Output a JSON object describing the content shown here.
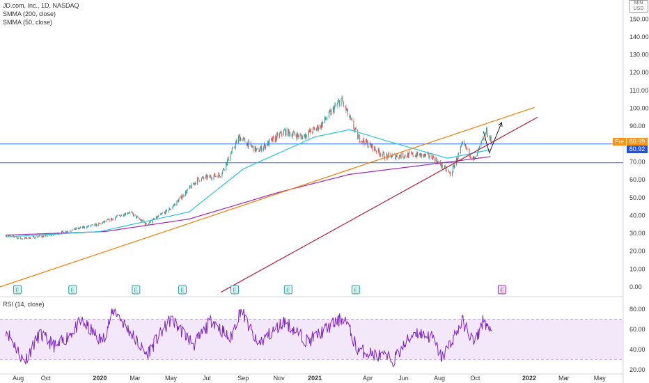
{
  "legend": {
    "title": "JD.com, Inc., 1D, NASDAQ",
    "line1": "SMMA (200, close)",
    "line2": "SMMA (50, close)"
  },
  "rsi_legend": "RSI (14, close)",
  "currency": {
    "line1": "MIN",
    "line2": "USD"
  },
  "pre_label": "Pre",
  "tags": {
    "pre_price": "80.99",
    "last_price": "80.92"
  },
  "earnings_marker": "E",
  "colors": {
    "up": "#26a69a",
    "down": "#ef5350",
    "smma200": "#9c27b0",
    "smma50": "#26c6da",
    "trend_orange": "#f57c00",
    "trend_red": "#b71c3c",
    "hline": "#2962ff",
    "rsi": "#7e22ce",
    "rsi_band": "#e9d8f7",
    "pre": "#f7931a",
    "last": "#1e53e5"
  },
  "chart_data": [
    {
      "type": "candlestick",
      "title": "JD.com, Inc., 1D, NASDAQ",
      "y_axis": {
        "ticks": [
          0,
          10,
          20,
          30,
          40,
          50,
          60,
          70,
          80,
          90,
          100,
          110,
          120,
          130,
          140,
          150
        ],
        "tick_labels": [
          "0.00",
          "10.00",
          "20.00",
          "30.00",
          "40.00",
          "50.00",
          "60.00",
          "70.00",
          "80.00",
          "90.00",
          "100.00",
          "110.00",
          "120.00",
          "130.00",
          "140.00",
          "150.00"
        ]
      },
      "x_axis": {
        "tick_labels": [
          "Aug",
          "Oct",
          "2020",
          "Mar",
          "May",
          "Jul",
          "Sep",
          "Nov",
          "2021",
          "Apr",
          "Jun",
          "Aug",
          "Oct",
          "2022",
          "Mar",
          "May"
        ]
      },
      "series_close_keypoints": [
        {
          "date": "2019-07-25",
          "value": 29
        },
        {
          "date": "2019-08-20",
          "value": 27
        },
        {
          "date": "2019-10-10",
          "value": 29
        },
        {
          "date": "2019-11-15",
          "value": 32
        },
        {
          "date": "2019-12-30",
          "value": 35
        },
        {
          "date": "2020-02-20",
          "value": 42
        },
        {
          "date": "2020-03-20",
          "value": 35
        },
        {
          "date": "2020-05-01",
          "value": 44
        },
        {
          "date": "2020-06-15",
          "value": 60
        },
        {
          "date": "2020-07-25",
          "value": 63
        },
        {
          "date": "2020-08-25",
          "value": 84
        },
        {
          "date": "2020-09-25",
          "value": 76
        },
        {
          "date": "2020-11-10",
          "value": 87
        },
        {
          "date": "2020-12-10",
          "value": 84
        },
        {
          "date": "2021-01-10",
          "value": 90
        },
        {
          "date": "2021-02-15",
          "value": 105
        },
        {
          "date": "2021-03-15",
          "value": 84
        },
        {
          "date": "2021-05-01",
          "value": 73
        },
        {
          "date": "2021-06-20",
          "value": 74
        },
        {
          "date": "2021-07-20",
          "value": 73
        },
        {
          "date": "2021-08-20",
          "value": 63
        },
        {
          "date": "2021-09-10",
          "value": 80
        },
        {
          "date": "2021-09-30",
          "value": 71
        },
        {
          "date": "2021-10-20",
          "value": 87
        },
        {
          "date": "2021-10-29",
          "value": 80.92
        }
      ],
      "smma200_keypoints": [
        {
          "date": "2019-07-25",
          "value": 29
        },
        {
          "date": "2020-01-10",
          "value": 31
        },
        {
          "date": "2020-06-01",
          "value": 38
        },
        {
          "date": "2020-11-01",
          "value": 53
        },
        {
          "date": "2021-03-01",
          "value": 63
        },
        {
          "date": "2021-07-01",
          "value": 68
        },
        {
          "date": "2021-10-29",
          "value": 73
        }
      ],
      "smma50_keypoints": [
        {
          "date": "2019-07-25",
          "value": 28
        },
        {
          "date": "2020-01-01",
          "value": 31
        },
        {
          "date": "2020-06-01",
          "value": 42
        },
        {
          "date": "2020-09-01",
          "value": 66
        },
        {
          "date": "2021-01-01",
          "value": 84
        },
        {
          "date": "2021-03-01",
          "value": 88
        },
        {
          "date": "2021-05-01",
          "value": 82
        },
        {
          "date": "2021-08-15",
          "value": 72
        },
        {
          "date": "2021-10-29",
          "value": 77
        }
      ],
      "horizontal_lines": [
        80,
        69.5
      ],
      "trendlines": [
        {
          "name": "upper",
          "from": {
            "date": "2019-07-15",
            "value": 0
          },
          "to": {
            "date": "2022-01-10",
            "value": 100.5
          }
        },
        {
          "name": "lower",
          "from": {
            "date": "2020-07-25",
            "value": -3
          },
          "to": {
            "date": "2022-01-15",
            "value": 95
          }
        }
      ],
      "projection_arrow": [
        {
          "date": "2021-10-15",
          "value": 87
        },
        {
          "date": "2021-10-25",
          "value": 75
        },
        {
          "date": "2021-11-15",
          "value": 92
        }
      ],
      "earnings_dates": [
        "2019-08-13",
        "2019-11-15",
        "2020-03-02",
        "2020-05-20",
        "2020-08-17",
        "2020-11-16",
        "2021-03-11"
      ],
      "earnings_upcoming": "2021-11-15",
      "pre_value": 80.99,
      "last_value": 80.92
    },
    {
      "type": "line",
      "title": "RSI (14, close)",
      "y_axis": {
        "ticks": [
          20,
          40,
          60,
          80
        ],
        "tick_labels": [
          "20.00",
          "40.00",
          "60.00",
          "80.00"
        ]
      },
      "bands": [
        30,
        70
      ],
      "rsi_keypoints": [
        {
          "date": "2019-07-25",
          "value": 60
        },
        {
          "date": "2019-08-25",
          "value": 28
        },
        {
          "date": "2019-09-20",
          "value": 55
        },
        {
          "date": "2019-10-20",
          "value": 42
        },
        {
          "date": "2019-12-01",
          "value": 68
        },
        {
          "date": "2020-01-05",
          "value": 48
        },
        {
          "date": "2020-01-25",
          "value": 80
        },
        {
          "date": "2020-03-20",
          "value": 35
        },
        {
          "date": "2020-05-01",
          "value": 70
        },
        {
          "date": "2020-06-10",
          "value": 45
        },
        {
          "date": "2020-07-10",
          "value": 70
        },
        {
          "date": "2020-08-10",
          "value": 50
        },
        {
          "date": "2020-08-28",
          "value": 80
        },
        {
          "date": "2020-09-25",
          "value": 45
        },
        {
          "date": "2020-11-10",
          "value": 68
        },
        {
          "date": "2020-12-20",
          "value": 48
        },
        {
          "date": "2021-02-01",
          "value": 65
        },
        {
          "date": "2021-02-20",
          "value": 72
        },
        {
          "date": "2021-03-15",
          "value": 40
        },
        {
          "date": "2021-05-15",
          "value": 30
        },
        {
          "date": "2021-06-20",
          "value": 58
        },
        {
          "date": "2021-07-20",
          "value": 52
        },
        {
          "date": "2021-08-05",
          "value": 32
        },
        {
          "date": "2021-09-10",
          "value": 68
        },
        {
          "date": "2021-09-30",
          "value": 45
        },
        {
          "date": "2021-10-15",
          "value": 70
        },
        {
          "date": "2021-10-29",
          "value": 55
        }
      ]
    }
  ]
}
